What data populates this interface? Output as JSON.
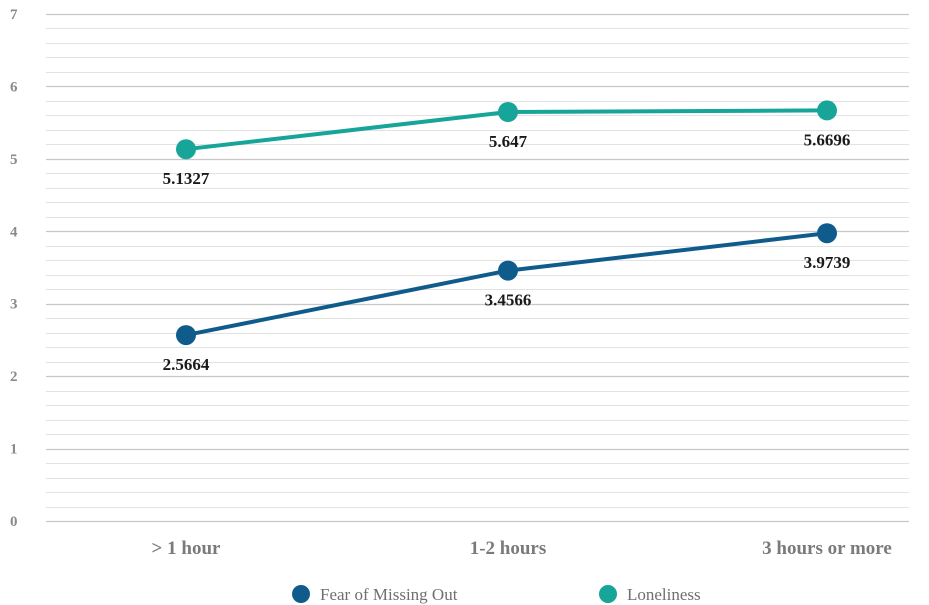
{
  "chart_data": {
    "type": "line",
    "categories": [
      "> 1 hour",
      "1-2 hours",
      "3 hours or more"
    ],
    "series": [
      {
        "name": "Fear of Missing Out",
        "values": [
          2.5664,
          3.4566,
          3.9739
        ],
        "labels": [
          "2.5664",
          "3.4566",
          "3.9739"
        ],
        "color": "#0f5c8c"
      },
      {
        "name": "Loneliness",
        "values": [
          5.1327,
          5.647,
          5.6696
        ],
        "labels": [
          "5.1327",
          "5.647",
          "5.6696"
        ],
        "color": "#17a59a"
      }
    ],
    "ylim": [
      0,
      7
    ],
    "yticks": [
      "0",
      "1",
      "2",
      "3",
      "4",
      "5",
      "6",
      "7"
    ],
    "minor_gridlines_per_unit": 5,
    "grid": true,
    "legend": "bottom"
  },
  "colors": {
    "major_grid": "#c8c8c8",
    "minor_grid": "#e2e2e2"
  }
}
